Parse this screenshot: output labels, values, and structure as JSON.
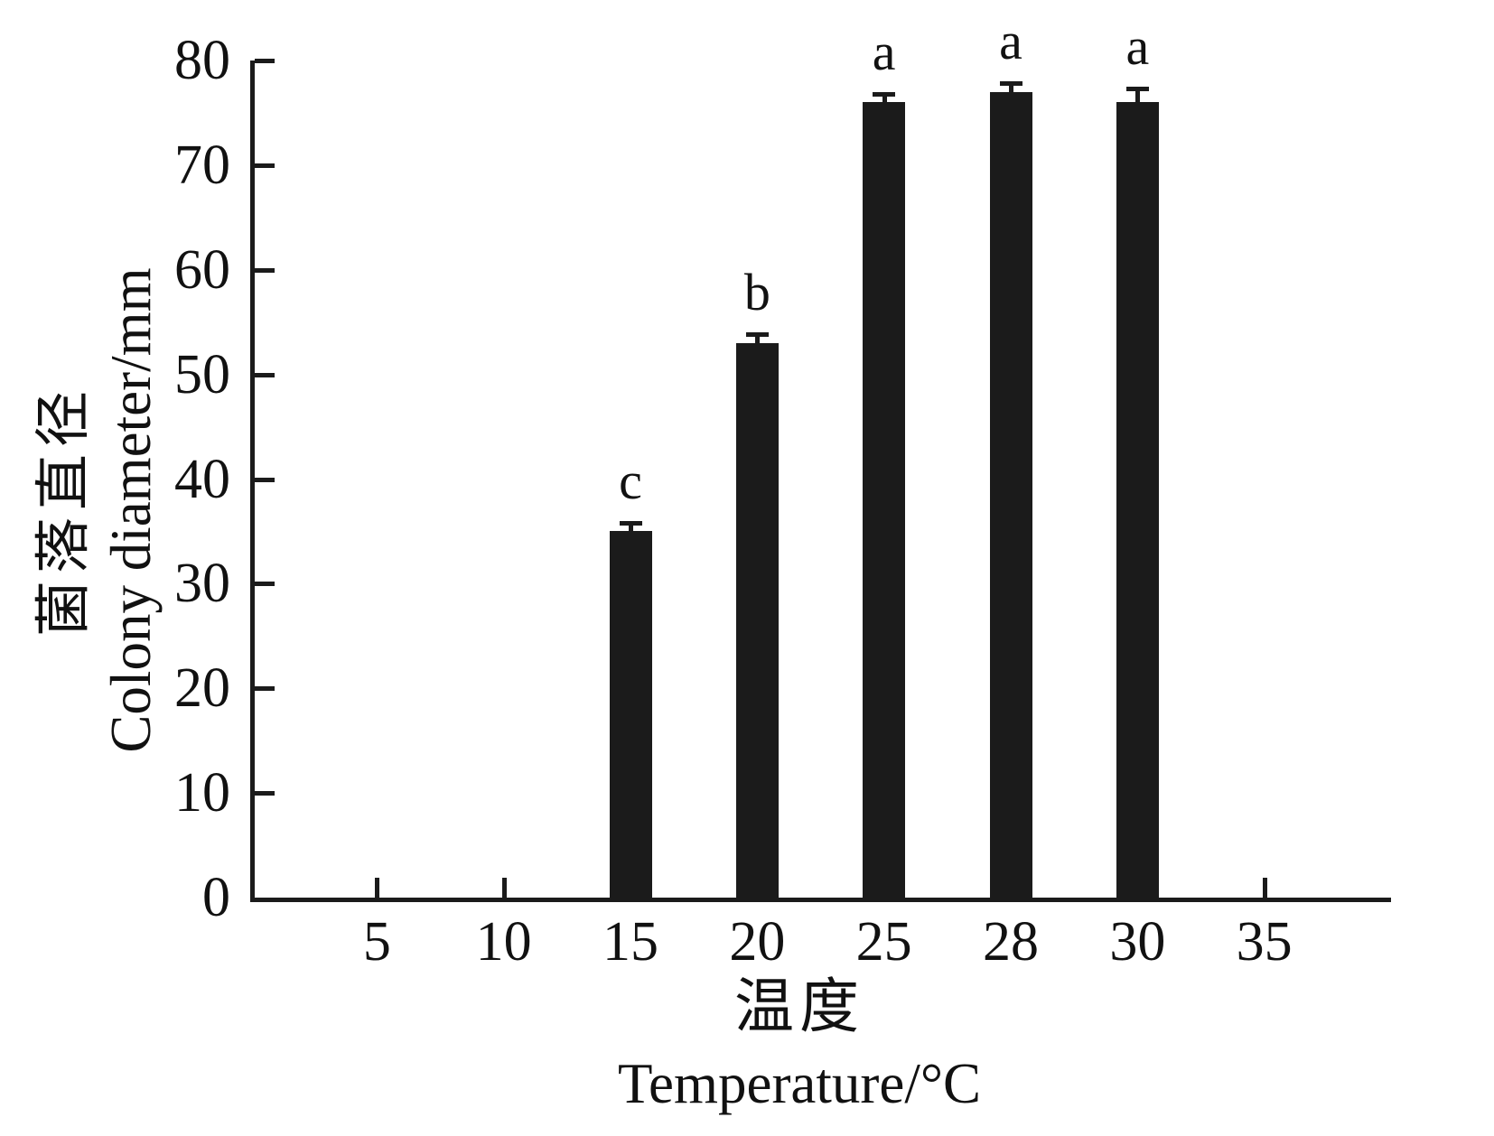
{
  "chart_data": {
    "type": "bar",
    "title": "",
    "categories": [
      "5",
      "10",
      "15",
      "20",
      "25",
      "28",
      "30",
      "35"
    ],
    "values": [
      null,
      null,
      35,
      53,
      76,
      77,
      76,
      null
    ],
    "errors": [
      null,
      null,
      1,
      1,
      1,
      1,
      1.5,
      null
    ],
    "sig_letters": [
      "",
      "",
      "c",
      "b",
      "a",
      "a",
      "a",
      ""
    ],
    "xlabel_zh": "温度",
    "xlabel_en": "Temperature/°C",
    "ylabel_zh": "菌落直径",
    "ylabel_en": "Colony diameter/mm",
    "ylim": [
      0,
      80
    ],
    "yticks": [
      0,
      10,
      20,
      30,
      40,
      50,
      60,
      70,
      80
    ],
    "grid": "off",
    "legend": "none",
    "bar_color": "#1b1b1b",
    "axis_color": "#1b1b1b",
    "background_color": "#ffffff"
  }
}
